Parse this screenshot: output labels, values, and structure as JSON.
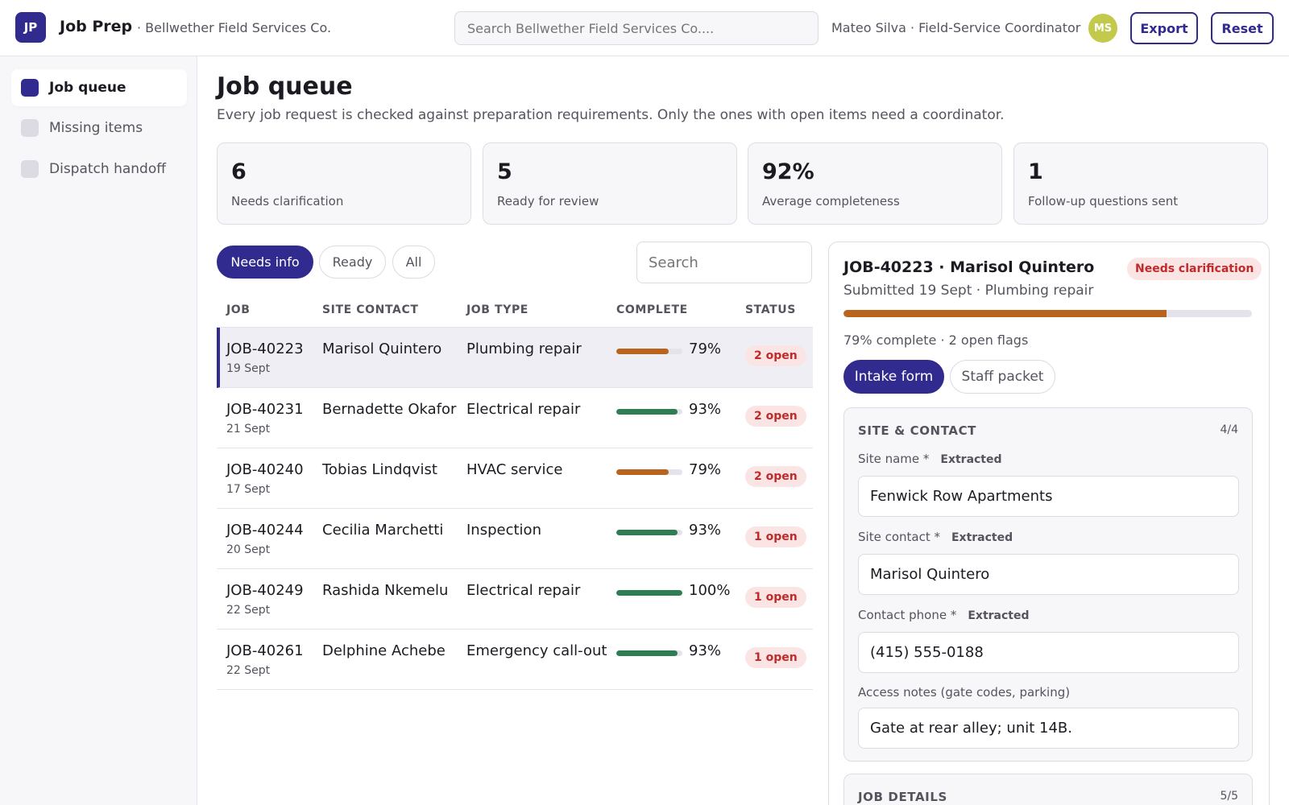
{
  "app": {
    "logo_initials": "JP",
    "name": "Job Prep",
    "org": "· Bellwether Field Services Co.",
    "search_placeholder": "Search Bellwether Field Services Co....",
    "user_label": "Mateo Silva · Field-Service Coordinator",
    "user_initials": "MS",
    "export_label": "Export",
    "reset_label": "Reset"
  },
  "sidebar": {
    "items": [
      {
        "label": "Job queue",
        "active": true
      },
      {
        "label": "Missing items",
        "active": false
      },
      {
        "label": "Dispatch handoff",
        "active": false
      }
    ]
  },
  "main": {
    "title": "Job queue",
    "subtitle": "Every job request is checked against preparation requirements. Only the ones with open items need a coordinator.",
    "stats": [
      {
        "value": "6",
        "label": "Needs clarification"
      },
      {
        "value": "5",
        "label": "Ready for review"
      },
      {
        "value": "92%",
        "label": "Average completeness"
      },
      {
        "value": "1",
        "label": "Follow-up questions sent"
      }
    ],
    "filters": [
      {
        "label": "Needs info",
        "active": true
      },
      {
        "label": "Ready",
        "active": false
      },
      {
        "label": "All",
        "active": false
      }
    ],
    "search_placeholder": "Search"
  },
  "table": {
    "headers": [
      "JOB",
      "SITE CONTACT",
      "JOB TYPE",
      "COMPLETE",
      "STATUS"
    ],
    "rows": [
      {
        "job": "JOB-40223",
        "date": "19 Sept",
        "contact": "Marisol Quintero",
        "type": "Plumbing repair",
        "complete": 79,
        "complete_label": "79%",
        "status": "2 open",
        "bar_color": "#b8631e",
        "selected": true
      },
      {
        "job": "JOB-40231",
        "date": "21 Sept",
        "contact": "Bernadette Okafor",
        "type": "Electrical repair",
        "complete": 93,
        "complete_label": "93%",
        "status": "2 open",
        "bar_color": "#2f7d52",
        "selected": false
      },
      {
        "job": "JOB-40240",
        "date": "17 Sept",
        "contact": "Tobias Lindqvist",
        "type": "HVAC service",
        "complete": 79,
        "complete_label": "79%",
        "status": "2 open",
        "bar_color": "#b8631e",
        "selected": false
      },
      {
        "job": "JOB-40244",
        "date": "20 Sept",
        "contact": "Cecilia Marchetti",
        "type": "Inspection",
        "complete": 93,
        "complete_label": "93%",
        "status": "1 open",
        "bar_color": "#2f7d52",
        "selected": false
      },
      {
        "job": "JOB-40249",
        "date": "22 Sept",
        "contact": "Rashida Nkemelu",
        "type": "Electrical repair",
        "complete": 100,
        "complete_label": "100%",
        "status": "1 open",
        "bar_color": "#2f7d52",
        "selected": false
      },
      {
        "job": "JOB-40261",
        "date": "22 Sept",
        "contact": "Delphine Achebe",
        "type": "Emergency call-out",
        "complete": 93,
        "complete_label": "93%",
        "status": "1 open",
        "bar_color": "#2f7d52",
        "selected": false
      }
    ]
  },
  "detail": {
    "title": "JOB-40223 · Marisol Quintero",
    "badge": "Needs clarification",
    "subtitle": "Submitted 19 Sept · Plumbing repair",
    "progress": 79,
    "meta": "79% complete · 2 open flags",
    "tabs": [
      {
        "label": "Intake form",
        "active": true
      },
      {
        "label": "Staff packet",
        "active": false
      }
    ],
    "section1": {
      "title": "SITE & CONTACT",
      "count": "4/4",
      "fields": [
        {
          "label": "Site name *",
          "tag": "Extracted",
          "value": "Fenwick Row Apartments"
        },
        {
          "label": "Site contact *",
          "tag": "Extracted",
          "value": "Marisol Quintero"
        },
        {
          "label": "Contact phone *",
          "tag": "Extracted",
          "value": "(415) 555-0188"
        },
        {
          "label": "Access notes (gate codes, parking)",
          "tag": "",
          "value": "Gate at rear alley; unit 14B."
        }
      ]
    },
    "section2": {
      "title": "JOB DETAILS",
      "count": "5/5"
    }
  },
  "colors": {
    "accent": "#312a8f",
    "warning_bar": "#b8631e",
    "success_bar": "#2f7d52",
    "danger_text": "#c12a2a",
    "danger_bg": "#fbe4e4",
    "avatar": "#c3c94a"
  }
}
